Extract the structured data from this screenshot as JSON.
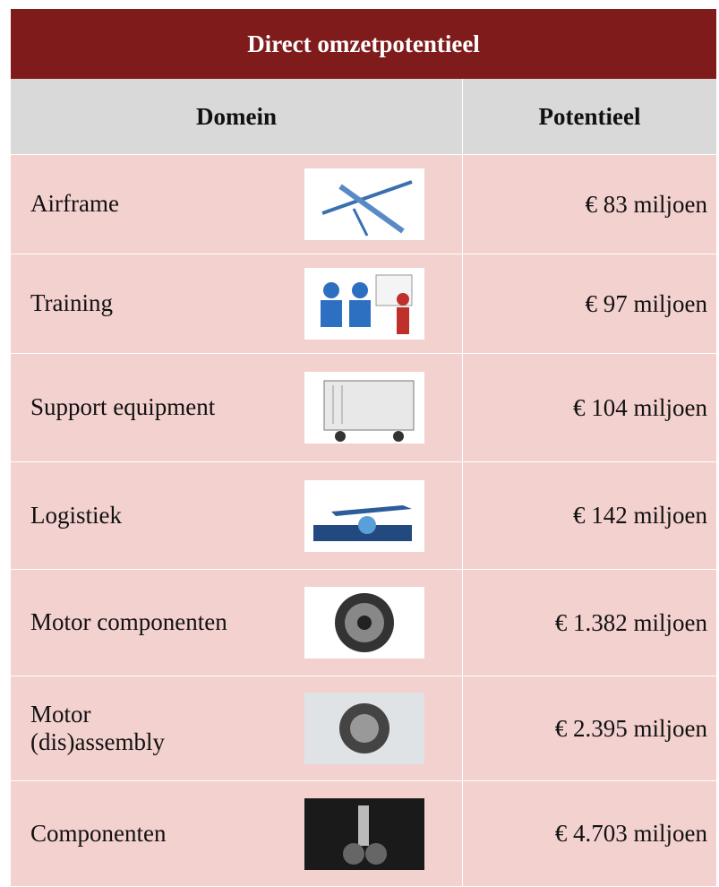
{
  "header": {
    "title": "Direct omzetpotentieel"
  },
  "table": {
    "columns": [
      "Domein",
      "Potentieel"
    ],
    "rows": [
      [
        "Airframe",
        "€ 83 miljoen"
      ],
      [
        "Training",
        "€ 97 miljoen"
      ],
      [
        "Support equipment",
        "€ 104 miljoen"
      ],
      [
        "Logistiek",
        "€ 142 miljoen"
      ],
      [
        "Motor componenten",
        "€ 1.382 miljoen"
      ],
      [
        "Motor\n(dis)assembly",
        "€ 2.395 miljoen"
      ],
      [
        "Componenten",
        "€ 4.703 miljoen"
      ]
    ]
  }
}
